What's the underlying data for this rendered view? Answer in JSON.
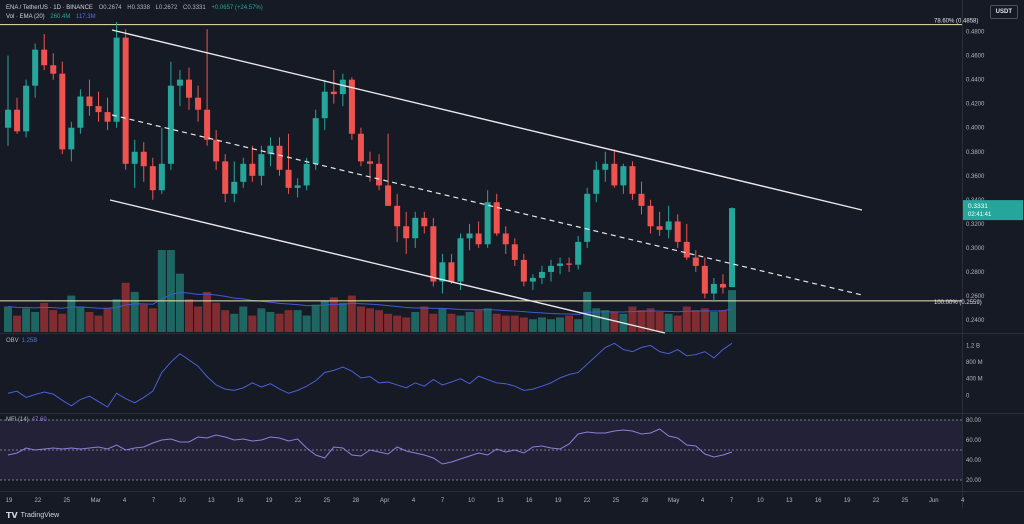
{
  "header": {
    "symbol": "ENA / TetherUS · 1D · BINANCE",
    "open": "O0.2674",
    "high": "H0.3338",
    "low": "L0.2672",
    "close": "C0.3331",
    "change": "+0.0657 (+24.57%)",
    "vol_line_label": "Vol · EMA (20)",
    "vol_value": "260.4M",
    "vol_ema_value": "117.3M"
  },
  "currency_button": "USDT",
  "price_axis": {
    "ticks": [
      "0.4800",
      "0.4600",
      "0.4400",
      "0.4200",
      "0.4000",
      "0.3800",
      "0.3600",
      "0.3400",
      "0.3200",
      "0.3000",
      "0.2800",
      "0.2600",
      "0.2400"
    ]
  },
  "fib": {
    "upper_label": "78.60% (0.4858)",
    "upper_value": 0.4858,
    "lower_label": "100.00% (0.2559)",
    "lower_value": 0.2559
  },
  "last_price_tag": {
    "price": "0.3331",
    "countdown": "02:41:41"
  },
  "obv": {
    "title": "OBV",
    "value": "1.25B",
    "ticks": [
      "1.2 B",
      "800 M",
      "400 M",
      "0"
    ]
  },
  "mfi": {
    "title": "MFI (14)",
    "value": "47.60",
    "ticks": [
      "80.00",
      "60.00",
      "40.00",
      "20.00"
    ]
  },
  "time_axis": {
    "labels": [
      "19",
      "22",
      "25",
      "Mar",
      "4",
      "7",
      "10",
      "13",
      "16",
      "19",
      "22",
      "25",
      "28",
      "Apr",
      "4",
      "7",
      "10",
      "13",
      "16",
      "19",
      "22",
      "25",
      "28",
      "May",
      "4",
      "7",
      "10",
      "13",
      "16",
      "19",
      "22",
      "25",
      "Jun",
      "4"
    ]
  },
  "footer": {
    "brand": "TradingView"
  },
  "colors": {
    "up": "#26a69a",
    "down": "#ef5350",
    "obv_line": "#4c5fd6",
    "mfi_line": "#8c7fd9",
    "vol_ema": "#3f5bd6",
    "fib_line": "#f0e6b0"
  },
  "chart_data": {
    "type": "candlestick",
    "symbol": "ENA/USDT",
    "interval": "1D",
    "yrange": [
      0.23,
      0.488
    ],
    "candles": [
      {
        "o": 0.4,
        "h": 0.46,
        "l": 0.385,
        "c": 0.415
      },
      {
        "o": 0.415,
        "h": 0.425,
        "l": 0.395,
        "c": 0.397
      },
      {
        "o": 0.397,
        "h": 0.44,
        "l": 0.392,
        "c": 0.435
      },
      {
        "o": 0.435,
        "h": 0.47,
        "l": 0.425,
        "c": 0.465
      },
      {
        "o": 0.465,
        "h": 0.478,
        "l": 0.448,
        "c": 0.452
      },
      {
        "o": 0.452,
        "h": 0.462,
        "l": 0.44,
        "c": 0.445
      },
      {
        "o": 0.445,
        "h": 0.455,
        "l": 0.378,
        "c": 0.382
      },
      {
        "o": 0.382,
        "h": 0.405,
        "l": 0.372,
        "c": 0.4
      },
      {
        "o": 0.4,
        "h": 0.432,
        "l": 0.395,
        "c": 0.426
      },
      {
        "o": 0.426,
        "h": 0.44,
        "l": 0.41,
        "c": 0.418
      },
      {
        "o": 0.418,
        "h": 0.43,
        "l": 0.405,
        "c": 0.413
      },
      {
        "o": 0.413,
        "h": 0.425,
        "l": 0.398,
        "c": 0.405
      },
      {
        "o": 0.405,
        "h": 0.488,
        "l": 0.4,
        "c": 0.475
      },
      {
        "o": 0.475,
        "h": 0.482,
        "l": 0.365,
        "c": 0.37
      },
      {
        "o": 0.37,
        "h": 0.39,
        "l": 0.35,
        "c": 0.38
      },
      {
        "o": 0.38,
        "h": 0.388,
        "l": 0.355,
        "c": 0.368
      },
      {
        "o": 0.368,
        "h": 0.375,
        "l": 0.34,
        "c": 0.348
      },
      {
        "o": 0.348,
        "h": 0.4,
        "l": 0.345,
        "c": 0.37
      },
      {
        "o": 0.37,
        "h": 0.455,
        "l": 0.365,
        "c": 0.435
      },
      {
        "o": 0.435,
        "h": 0.448,
        "l": 0.418,
        "c": 0.44
      },
      {
        "o": 0.44,
        "h": 0.45,
        "l": 0.415,
        "c": 0.425
      },
      {
        "o": 0.425,
        "h": 0.435,
        "l": 0.405,
        "c": 0.415
      },
      {
        "o": 0.415,
        "h": 0.482,
        "l": 0.385,
        "c": 0.39
      },
      {
        "o": 0.39,
        "h": 0.398,
        "l": 0.365,
        "c": 0.372
      },
      {
        "o": 0.372,
        "h": 0.378,
        "l": 0.338,
        "c": 0.345
      },
      {
        "o": 0.345,
        "h": 0.372,
        "l": 0.338,
        "c": 0.355
      },
      {
        "o": 0.355,
        "h": 0.375,
        "l": 0.35,
        "c": 0.37
      },
      {
        "o": 0.37,
        "h": 0.385,
        "l": 0.355,
        "c": 0.36
      },
      {
        "o": 0.36,
        "h": 0.385,
        "l": 0.352,
        "c": 0.378
      },
      {
        "o": 0.378,
        "h": 0.392,
        "l": 0.368,
        "c": 0.385
      },
      {
        "o": 0.385,
        "h": 0.392,
        "l": 0.36,
        "c": 0.365
      },
      {
        "o": 0.365,
        "h": 0.395,
        "l": 0.345,
        "c": 0.35
      },
      {
        "o": 0.35,
        "h": 0.358,
        "l": 0.342,
        "c": 0.352
      },
      {
        "o": 0.352,
        "h": 0.375,
        "l": 0.348,
        "c": 0.37
      },
      {
        "o": 0.37,
        "h": 0.415,
        "l": 0.365,
        "c": 0.408
      },
      {
        "o": 0.408,
        "h": 0.44,
        "l": 0.398,
        "c": 0.43
      },
      {
        "o": 0.43,
        "h": 0.448,
        "l": 0.42,
        "c": 0.428
      },
      {
        "o": 0.428,
        "h": 0.445,
        "l": 0.418,
        "c": 0.44
      },
      {
        "o": 0.44,
        "h": 0.442,
        "l": 0.39,
        "c": 0.395
      },
      {
        "o": 0.395,
        "h": 0.4,
        "l": 0.368,
        "c": 0.372
      },
      {
        "o": 0.372,
        "h": 0.38,
        "l": 0.355,
        "c": 0.37
      },
      {
        "o": 0.37,
        "h": 0.378,
        "l": 0.348,
        "c": 0.352
      },
      {
        "o": 0.352,
        "h": 0.395,
        "l": 0.335,
        "c": 0.335
      },
      {
        "o": 0.335,
        "h": 0.345,
        "l": 0.305,
        "c": 0.318
      },
      {
        "o": 0.318,
        "h": 0.33,
        "l": 0.295,
        "c": 0.308
      },
      {
        "o": 0.308,
        "h": 0.33,
        "l": 0.3,
        "c": 0.325
      },
      {
        "o": 0.325,
        "h": 0.33,
        "l": 0.312,
        "c": 0.318
      },
      {
        "o": 0.318,
        "h": 0.325,
        "l": 0.268,
        "c": 0.272
      },
      {
        "o": 0.272,
        "h": 0.295,
        "l": 0.262,
        "c": 0.288
      },
      {
        "o": 0.288,
        "h": 0.295,
        "l": 0.27,
        "c": 0.272
      },
      {
        "o": 0.272,
        "h": 0.312,
        "l": 0.265,
        "c": 0.308
      },
      {
        "o": 0.308,
        "h": 0.32,
        "l": 0.298,
        "c": 0.312
      },
      {
        "o": 0.312,
        "h": 0.322,
        "l": 0.3,
        "c": 0.303
      },
      {
        "o": 0.303,
        "h": 0.348,
        "l": 0.3,
        "c": 0.338
      },
      {
        "o": 0.338,
        "h": 0.345,
        "l": 0.31,
        "c": 0.312
      },
      {
        "o": 0.312,
        "h": 0.318,
        "l": 0.295,
        "c": 0.303
      },
      {
        "o": 0.303,
        "h": 0.308,
        "l": 0.285,
        "c": 0.29
      },
      {
        "o": 0.29,
        "h": 0.295,
        "l": 0.268,
        "c": 0.272
      },
      {
        "o": 0.272,
        "h": 0.278,
        "l": 0.265,
        "c": 0.275
      },
      {
        "o": 0.275,
        "h": 0.285,
        "l": 0.27,
        "c": 0.28
      },
      {
        "o": 0.28,
        "h": 0.29,
        "l": 0.272,
        "c": 0.285
      },
      {
        "o": 0.285,
        "h": 0.292,
        "l": 0.278,
        "c": 0.287
      },
      {
        "o": 0.287,
        "h": 0.292,
        "l": 0.28,
        "c": 0.286
      },
      {
        "o": 0.286,
        "h": 0.31,
        "l": 0.282,
        "c": 0.305
      },
      {
        "o": 0.305,
        "h": 0.35,
        "l": 0.3,
        "c": 0.345
      },
      {
        "o": 0.345,
        "h": 0.372,
        "l": 0.338,
        "c": 0.365
      },
      {
        "o": 0.365,
        "h": 0.38,
        "l": 0.355,
        "c": 0.37
      },
      {
        "o": 0.37,
        "h": 0.382,
        "l": 0.35,
        "c": 0.352
      },
      {
        "o": 0.352,
        "h": 0.37,
        "l": 0.345,
        "c": 0.368
      },
      {
        "o": 0.368,
        "h": 0.372,
        "l": 0.34,
        "c": 0.345
      },
      {
        "o": 0.345,
        "h": 0.355,
        "l": 0.328,
        "c": 0.335
      },
      {
        "o": 0.335,
        "h": 0.34,
        "l": 0.312,
        "c": 0.318
      },
      {
        "o": 0.318,
        "h": 0.33,
        "l": 0.31,
        "c": 0.315
      },
      {
        "o": 0.315,
        "h": 0.335,
        "l": 0.308,
        "c": 0.322
      },
      {
        "o": 0.322,
        "h": 0.328,
        "l": 0.3,
        "c": 0.305
      },
      {
        "o": 0.305,
        "h": 0.32,
        "l": 0.29,
        "c": 0.292
      },
      {
        "o": 0.292,
        "h": 0.298,
        "l": 0.28,
        "c": 0.285
      },
      {
        "o": 0.285,
        "h": 0.292,
        "l": 0.258,
        "c": 0.262
      },
      {
        "o": 0.262,
        "h": 0.275,
        "l": 0.255,
        "c": 0.27
      },
      {
        "o": 0.27,
        "h": 0.278,
        "l": 0.262,
        "c": 0.267
      },
      {
        "o": 0.2674,
        "h": 0.3338,
        "l": 0.2672,
        "c": 0.3331
      }
    ],
    "volume": [
      14,
      9,
      13,
      11,
      16,
      12,
      10,
      20,
      14,
      11,
      9,
      13,
      18,
      27,
      22,
      15,
      13,
      45,
      45,
      32,
      18,
      14,
      22,
      16,
      12,
      10,
      14,
      9,
      13,
      11,
      10,
      12,
      12,
      9,
      15,
      17,
      19,
      16,
      20,
      14,
      13,
      12,
      10,
      9,
      8,
      11,
      14,
      10,
      13,
      10,
      9,
      11,
      12,
      13,
      10,
      9,
      9,
      8,
      7,
      8,
      7,
      8,
      9,
      7,
      22,
      13,
      12,
      11,
      10,
      14,
      12,
      13,
      11,
      10,
      9,
      14,
      12,
      13,
      11,
      12,
      23
    ],
    "obv": [
      0.05,
      0.1,
      -0.05,
      0.02,
      0.08,
      0.03,
      -0.12,
      -0.25,
      -0.1,
      -0.02,
      -0.15,
      -0.28,
      0.05,
      -0.08,
      -0.18,
      -0.05,
      0.1,
      0.55,
      0.8,
      1.0,
      0.85,
      0.7,
      0.45,
      0.25,
      0.15,
      0.12,
      0.18,
      0.3,
      0.2,
      0.28,
      0.15,
      0.05,
      0.12,
      0.22,
      0.35,
      0.55,
      0.6,
      0.68,
      0.58,
      0.42,
      0.45,
      0.3,
      0.32,
      0.25,
      0.18,
      0.3,
      0.22,
      0.38,
      0.25,
      0.32,
      0.4,
      0.28,
      0.46,
      0.38,
      0.3,
      0.28,
      0.22,
      0.12,
      0.15,
      0.22,
      0.3,
      0.42,
      0.5,
      0.55,
      0.75,
      0.95,
      1.15,
      1.25,
      1.1,
      1.05,
      1.15,
      1.2,
      1.05,
      1.0,
      1.1,
      0.95,
      0.98,
      1.05,
      0.9,
      1.1,
      1.25
    ],
    "mfi": [
      45,
      47,
      52,
      50,
      51,
      52,
      51,
      52,
      51,
      52,
      53,
      51,
      55,
      50,
      52,
      53,
      57,
      60,
      61,
      58,
      58,
      63,
      62,
      65,
      63,
      60,
      61,
      59,
      60,
      63,
      62,
      59,
      61,
      52,
      45,
      42,
      53,
      52,
      45,
      44,
      50,
      48,
      46,
      53,
      49,
      47,
      45,
      42,
      36,
      38,
      41,
      44,
      47,
      45,
      51,
      48,
      50,
      47,
      53,
      54,
      52,
      51,
      56,
      66,
      68,
      67,
      67,
      69,
      70,
      69,
      66,
      67,
      71,
      64,
      62,
      55,
      54,
      46,
      43,
      45,
      48
    ]
  }
}
